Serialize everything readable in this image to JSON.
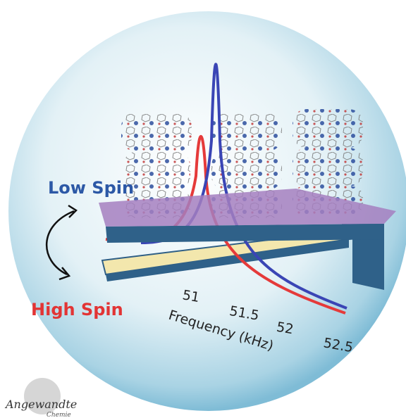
{
  "labels": {
    "low_spin": "Low Spin",
    "high_spin": "High Spin"
  },
  "axis": {
    "title": "Frequency (kHz)",
    "ticks": [
      51,
      51.5,
      52,
      52.5
    ]
  },
  "logo": {
    "name": "Angewandte",
    "sub": "Chemie"
  }
}
